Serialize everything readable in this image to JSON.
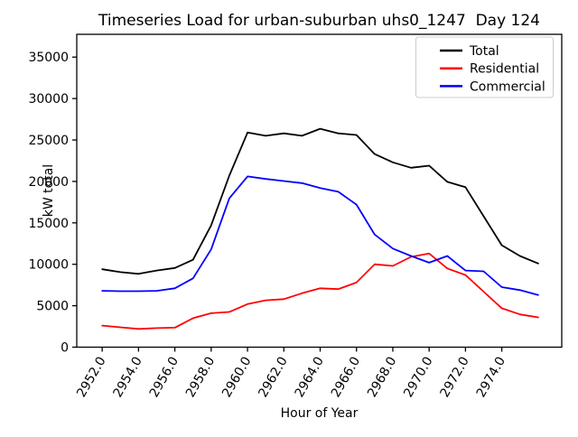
{
  "chart_data": {
    "type": "line",
    "title": "Timeseries Load for urban-suburban uhs0_1247  Day 124",
    "xlabel": "Hour of Year",
    "ylabel": "kW total",
    "x": [
      2952,
      2953,
      2954,
      2955,
      2956,
      2957,
      2958,
      2959,
      2960,
      2961,
      2962,
      2963,
      2964,
      2965,
      2966,
      2967,
      2968,
      2969,
      2970,
      2971,
      2972,
      2973,
      2974,
      2975,
      2976
    ],
    "series": [
      {
        "name": "Total",
        "color": "#000000",
        "values": [
          9400,
          9050,
          8850,
          9250,
          9550,
          10550,
          14700,
          20700,
          25900,
          25500,
          25800,
          25500,
          26350,
          25800,
          25600,
          23300,
          22300,
          21650,
          21900,
          19950,
          19300,
          15800,
          12300,
          11000,
          10100
        ]
      },
      {
        "name": "Residential",
        "color": "#ff0000",
        "values": [
          2600,
          2400,
          2200,
          2300,
          2350,
          3500,
          4100,
          4250,
          5200,
          5650,
          5800,
          6500,
          7100,
          7000,
          7800,
          10000,
          9800,
          10900,
          11300,
          9500,
          8700,
          6700,
          4700,
          3950,
          3600
        ]
      },
      {
        "name": "Commercial",
        "color": "#0000ff",
        "values": [
          6800,
          6750,
          6750,
          6800,
          7100,
          8300,
          11800,
          17950,
          20600,
          20300,
          20050,
          19800,
          19200,
          18750,
          17200,
          13600,
          11900,
          11000,
          10200,
          11000,
          9250,
          9150,
          7250,
          6890,
          6300
        ]
      }
    ],
    "xlim": [
      2950.6,
      2977.3
    ],
    "ylim": [
      0,
      37750
    ],
    "xticks": {
      "values": [
        2952,
        2954,
        2956,
        2958,
        2960,
        2962,
        2964,
        2966,
        2968,
        2970,
        2972,
        2974
      ],
      "labels": [
        "2952.0",
        "2954.0",
        "2956.0",
        "2958.0",
        "2960.0",
        "2962.0",
        "2964.0",
        "2966.0",
        "2968.0",
        "2970.0",
        "2972.0",
        "2974.0"
      ]
    },
    "yticks": {
      "values": [
        0,
        5000,
        10000,
        15000,
        20000,
        25000,
        30000,
        35000
      ],
      "labels": [
        "0",
        "5000",
        "10000",
        "15000",
        "20000",
        "25000",
        "30000",
        "35000"
      ]
    },
    "legend": {
      "position": "upper right",
      "entries": [
        "Total",
        "Residential",
        "Commercial"
      ]
    },
    "grid": false,
    "colors": {
      "axis": "#000000",
      "legend_border": "#cccccc",
      "background": "#ffffff"
    }
  }
}
